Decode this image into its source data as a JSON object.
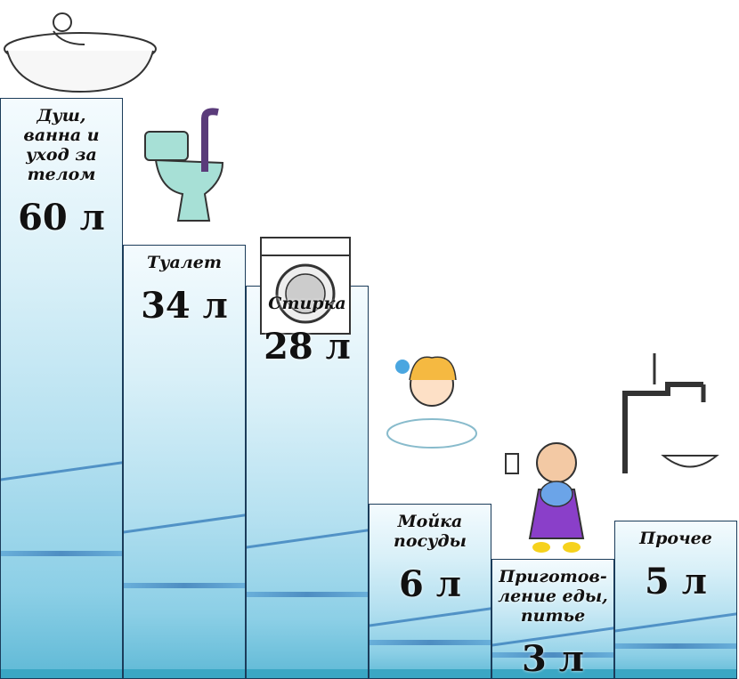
{
  "chart_data": {
    "type": "bar",
    "unit": "л",
    "categories": [
      "Душ,\nванна и\nуход за телом",
      "Туалет",
      "Стирка",
      "Мойка\nпосуды",
      "Приготов-\nление еды,\nпитье",
      "Прочее"
    ],
    "values": [
      60,
      34,
      28,
      6,
      3,
      5
    ],
    "value_labels": [
      "60 л",
      "34 л",
      "28 л",
      "6 л",
      "3 л",
      "5 л"
    ],
    "illustrations": [
      "bathtub-icon",
      "toilet-icon",
      "washing-machine-icon",
      "dishwashing-girl-icon",
      "cooking-girl-icon",
      "water-tap-icon"
    ],
    "colors": {
      "bar_top": "#f4fbfe",
      "bar_bottom": "#5fb9d6",
      "border": "#1b3c5a",
      "wave": "#2a72b5"
    }
  }
}
